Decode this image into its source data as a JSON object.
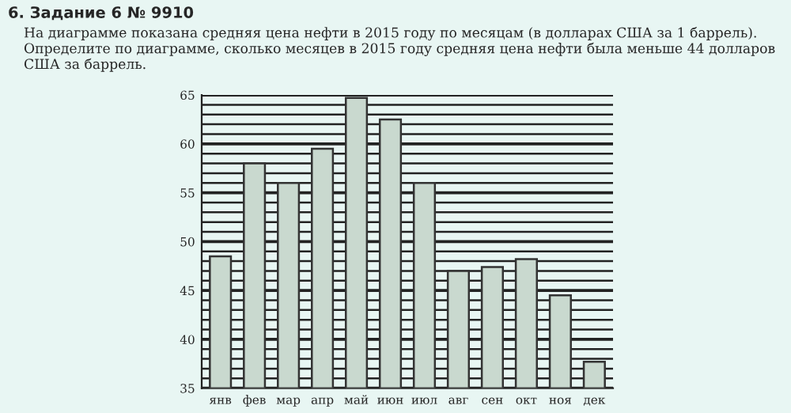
{
  "chart_data": {
    "type": "bar",
    "title": "6. Задание 6 № 9910",
    "subtitle": "На диаграмме показана средняя цена нефти в 2015 году по месяцам (в долларах США за 1 баррель). Определите по диаграмме, сколько месяцев в 2015 году средняя цена нефти была меньше 44 долларов США за баррель.",
    "categories": [
      "янв",
      "фев",
      "мар",
      "апр",
      "май",
      "июн",
      "июл",
      "авг",
      "сен",
      "окт",
      "ноя",
      "дек"
    ],
    "values": [
      48.5,
      58,
      56,
      59.5,
      64.7,
      62.5,
      56,
      47,
      47.4,
      48.2,
      44.5,
      37.7
    ],
    "color": "#c9d9cf",
    "ylim": [
      35,
      65
    ],
    "yticks": [
      35,
      {
        "value": 36,
        "label": null
      },
      {
        "value": 37,
        "label": null
      },
      {
        "value": 38,
        "label": null
      },
      {
        "value": 39,
        "label": null
      },
      40,
      {
        "value": 41,
        "label": null
      },
      {
        "value": 42,
        "label": null
      },
      {
        "value": 43,
        "label": null
      },
      {
        "value": 44,
        "label": null
      },
      45,
      {
        "value": 46,
        "label": null
      },
      {
        "value": 47,
        "label": null
      },
      {
        "value": 48,
        "label": null
      },
      {
        "value": 49,
        "label": null
      },
      50,
      {
        "value": 51,
        "label": null
      },
      {
        "value": 52,
        "label": null
      },
      {
        "value": 53,
        "label": null
      },
      {
        "value": 54,
        "label": null
      },
      55,
      {
        "value": 56,
        "label": null
      },
      {
        "value": 57,
        "label": null
      },
      {
        "value": 58,
        "label": null
      },
      {
        "value": 59,
        "label": null
      },
      60,
      {
        "value": 61,
        "label": null
      },
      {
        "value": 62,
        "label": null
      },
      {
        "value": 63,
        "label": null
      },
      {
        "value": 64,
        "label": null
      },
      65
    ],
    "grid": "y"
  }
}
